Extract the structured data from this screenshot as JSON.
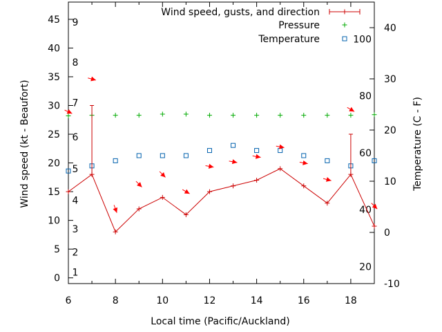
{
  "chart_data": {
    "type": "line",
    "xlabel": "Local time (Pacific/Auckland)",
    "ylabel": "Wind speed (kt - Beaufort)",
    "y2label": "Temperature (C - F)",
    "xlim": [
      6,
      19
    ],
    "ylim": [
      -1,
      48
    ],
    "y2lim": [
      -10,
      45
    ],
    "x_ticks": [
      "6",
      "8",
      "10",
      "12",
      "14",
      "16",
      "18"
    ],
    "y_ticks": [
      "0",
      "5",
      "10",
      "15",
      "20",
      "25",
      "30",
      "35",
      "40",
      "45"
    ],
    "y2_ticks": [
      "-10",
      "0",
      "10",
      "20",
      "30",
      "40"
    ],
    "beaufort_labels": [
      "1",
      "2",
      "3",
      "4",
      "5",
      "6",
      "7",
      "8",
      "9"
    ],
    "fahrenheit_labels": [
      "20",
      "40",
      "60",
      "80",
      "100"
    ],
    "grid": false,
    "legend_position": "top-right",
    "colors": {
      "wind": "#cc0000",
      "pressure": "#00aa00",
      "temperature": "#0060ad",
      "arrow": "#ff0000"
    },
    "series": [
      {
        "name": "Wind speed, gusts, and direction",
        "x": [
          6,
          7,
          8,
          9,
          10,
          11,
          12,
          13,
          14,
          15,
          16,
          17,
          18,
          19
        ],
        "values": [
          15,
          18,
          8,
          12,
          14,
          11,
          15,
          16,
          17,
          19,
          16,
          13,
          18,
          9
        ],
        "gusts": [
          null,
          30,
          null,
          null,
          null,
          null,
          null,
          null,
          null,
          null,
          null,
          null,
          25,
          null
        ],
        "direction_arrows_deg": [
          25,
          15,
          70,
          45,
          45,
          30,
          10,
          10,
          10,
          10,
          10,
          15,
          30,
          45
        ]
      },
      {
        "name": "Pressure",
        "x": [
          6,
          7,
          8,
          9,
          10,
          11,
          12,
          13,
          14,
          15,
          16,
          17,
          18,
          19
        ],
        "values": [
          28.2,
          28.3,
          28.3,
          28.3,
          28.5,
          28.5,
          28.3,
          28.3,
          28.3,
          28.3,
          28.3,
          28.3,
          28.3,
          28.4
        ]
      },
      {
        "name": "Temperature",
        "axis": "right",
        "x": [
          6,
          7,
          8,
          9,
          10,
          11,
          12,
          13,
          14,
          15,
          16,
          17,
          18,
          19
        ],
        "values": [
          12,
          13,
          14,
          15,
          15,
          15,
          16,
          17,
          16,
          16,
          15,
          14,
          13,
          14
        ]
      }
    ]
  }
}
